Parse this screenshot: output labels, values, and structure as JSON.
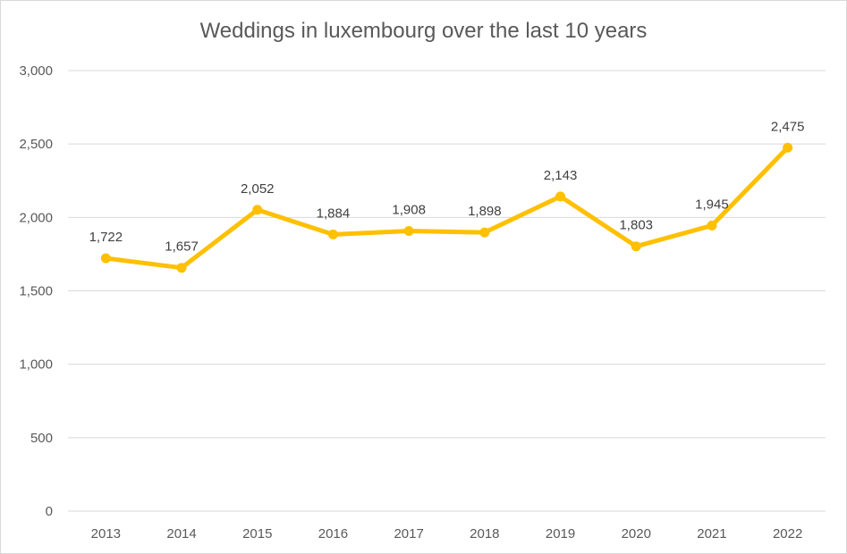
{
  "chart_data": {
    "type": "line",
    "title": "Weddings in luxembourg over the last 10 years",
    "xlabel": "",
    "ylabel": "",
    "categories": [
      "2013",
      "2014",
      "2015",
      "2016",
      "2017",
      "2018",
      "2019",
      "2020",
      "2021",
      "2022"
    ],
    "series": [
      {
        "values": [
          1722,
          1657,
          2052,
          1884,
          1908,
          1898,
          2143,
          1803,
          1945,
          2475
        ],
        "data_labels": [
          "1,722",
          "1,657",
          "2,052",
          "1,884",
          "1,908",
          "1,898",
          "2,143",
          "1,803",
          "1,945",
          "2,475"
        ]
      }
    ],
    "ylim": [
      0,
      3000
    ],
    "y_ticks": [
      0,
      500,
      1000,
      1500,
      2000,
      2500,
      3000
    ],
    "y_tick_labels": [
      "0",
      "500",
      "1,000",
      "1,500",
      "2,000",
      "2,500",
      "3,000"
    ],
    "grid": true,
    "legend": "none",
    "line_color": "#FFC000",
    "grid_color": "#d9d9d9"
  }
}
